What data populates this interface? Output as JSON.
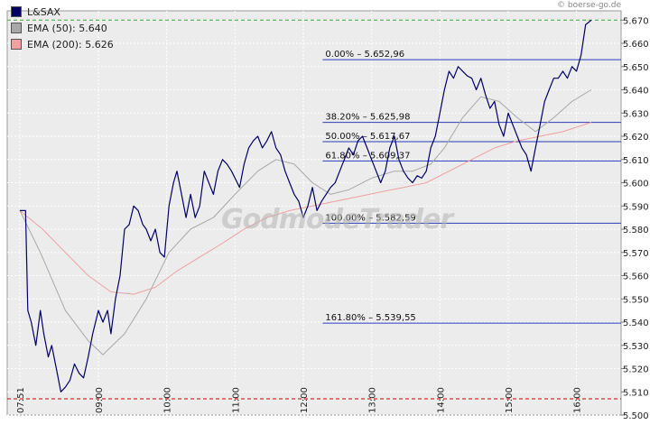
{
  "source": "© boerse-go.de",
  "watermark": "GodmodeTrader",
  "legend": [
    {
      "label": "L&SAX",
      "color": "#000066"
    },
    {
      "label": "EMA (50): 5.640",
      "color": "#a8a8a8"
    },
    {
      "label": "EMA (200): 5.626",
      "color": "#f0a0a0"
    }
  ],
  "chart_data": {
    "type": "line",
    "x_ticks": [
      "07:51",
      "09:00",
      "10:00",
      "11:00",
      "12:00",
      "13:00",
      "14:00",
      "15:00",
      "16:00"
    ],
    "y_ticks": [
      "5.500",
      "5.510",
      "5.520",
      "5.530",
      "5.540",
      "5.550",
      "5.560",
      "5.570",
      "5.580",
      "5.590",
      "5.600",
      "5.610",
      "5.620",
      "5.630",
      "5.640",
      "5.650",
      "5.660",
      "5.670"
    ],
    "ylim": [
      5.5,
      5.674
    ],
    "xlim": [
      "07:51",
      "16:13"
    ],
    "grid": true,
    "reference_lines": [
      {
        "type": "high",
        "value": 5.67,
        "color": "#33aa33",
        "style": "dashed"
      },
      {
        "type": "low",
        "value": 5.507,
        "color": "#cc0000",
        "style": "dashed"
      }
    ],
    "fibonacci": [
      {
        "label": "0.00% – 5.652,96",
        "value": 5.65296
      },
      {
        "label": "38.20% – 5.625,98",
        "value": 5.62598
      },
      {
        "label": "50.00% – 5.617,67",
        "value": 5.61767
      },
      {
        "label": "61.80% – 5.609,37",
        "value": 5.60937
      },
      {
        "label": "100.00% – 5.582,59",
        "value": 5.58259
      },
      {
        "label": "161.80% – 5.539,55",
        "value": 5.53955
      }
    ],
    "series": [
      {
        "name": "L&SAX",
        "color": "#000066",
        "points": [
          [
            "07:51",
            5.588
          ],
          [
            "07:56",
            5.588
          ],
          [
            "07:58",
            5.545
          ],
          [
            "08:01",
            5.54
          ],
          [
            "08:05",
            5.53
          ],
          [
            "08:09",
            5.545
          ],
          [
            "08:12",
            5.535
          ],
          [
            "08:16",
            5.525
          ],
          [
            "08:19",
            5.53
          ],
          [
            "08:23",
            5.52
          ],
          [
            "08:27",
            5.51
          ],
          [
            "08:31",
            5.512
          ],
          [
            "08:35",
            5.515
          ],
          [
            "08:39",
            5.522
          ],
          [
            "08:43",
            5.518
          ],
          [
            "08:47",
            5.516
          ],
          [
            "08:51",
            5.525
          ],
          [
            "08:55",
            5.535
          ],
          [
            "09:00",
            5.545
          ],
          [
            "09:04",
            5.54
          ],
          [
            "09:08",
            5.545
          ],
          [
            "09:11",
            5.535
          ],
          [
            "09:15",
            5.55
          ],
          [
            "09:19",
            5.56
          ],
          [
            "09:23",
            5.58
          ],
          [
            "09:27",
            5.582
          ],
          [
            "09:31",
            5.59
          ],
          [
            "09:35",
            5.588
          ],
          [
            "09:39",
            5.582
          ],
          [
            "09:42",
            5.58
          ],
          [
            "09:46",
            5.575
          ],
          [
            "09:50",
            5.58
          ],
          [
            "09:54",
            5.57
          ],
          [
            "09:58",
            5.568
          ],
          [
            "10:02",
            5.59
          ],
          [
            "10:06",
            5.6
          ],
          [
            "10:09",
            5.605
          ],
          [
            "10:13",
            5.595
          ],
          [
            "10:17",
            5.585
          ],
          [
            "10:21",
            5.595
          ],
          [
            "10:25",
            5.585
          ],
          [
            "10:29",
            5.59
          ],
          [
            "10:33",
            5.605
          ],
          [
            "10:37",
            5.6
          ],
          [
            "10:41",
            5.595
          ],
          [
            "10:45",
            5.605
          ],
          [
            "10:49",
            5.61
          ],
          [
            "10:53",
            5.608
          ],
          [
            "10:57",
            5.605
          ],
          [
            "11:00",
            5.602
          ],
          [
            "11:04",
            5.598
          ],
          [
            "11:08",
            5.608
          ],
          [
            "11:12",
            5.615
          ],
          [
            "11:16",
            5.618
          ],
          [
            "11:20",
            5.62
          ],
          [
            "11:24",
            5.615
          ],
          [
            "11:28",
            5.618
          ],
          [
            "11:32",
            5.622
          ],
          [
            "11:36",
            5.615
          ],
          [
            "11:40",
            5.612
          ],
          [
            "11:44",
            5.605
          ],
          [
            "11:48",
            5.6
          ],
          [
            "11:52",
            5.595
          ],
          [
            "11:56",
            5.592
          ],
          [
            "12:00",
            5.585
          ],
          [
            "12:04",
            5.59
          ],
          [
            "12:08",
            5.598
          ],
          [
            "12:12",
            5.588
          ],
          [
            "12:16",
            5.592
          ],
          [
            "12:20",
            5.595
          ],
          [
            "12:24",
            5.598
          ],
          [
            "12:28",
            5.6
          ],
          [
            "12:32",
            5.605
          ],
          [
            "12:36",
            5.61
          ],
          [
            "12:40",
            5.615
          ],
          [
            "12:44",
            5.612
          ],
          [
            "12:48",
            5.618
          ],
          [
            "12:52",
            5.62
          ],
          [
            "12:56",
            5.615
          ],
          [
            "13:00",
            5.61
          ],
          [
            "13:04",
            5.605
          ],
          [
            "13:08",
            5.6
          ],
          [
            "13:12",
            5.605
          ],
          [
            "13:16",
            5.615
          ],
          [
            "13:20",
            5.62
          ],
          [
            "13:24",
            5.61
          ],
          [
            "13:28",
            5.605
          ],
          [
            "13:32",
            5.602
          ],
          [
            "13:36",
            5.6
          ],
          [
            "13:40",
            5.603
          ],
          [
            "13:44",
            5.602
          ],
          [
            "13:48",
            5.605
          ],
          [
            "13:52",
            5.615
          ],
          [
            "13:56",
            5.62
          ],
          [
            "14:00",
            5.63
          ],
          [
            "14:04",
            5.64
          ],
          [
            "14:08",
            5.648
          ],
          [
            "14:12",
            5.645
          ],
          [
            "14:16",
            5.65
          ],
          [
            "14:20",
            5.648
          ],
          [
            "14:24",
            5.646
          ],
          [
            "14:28",
            5.645
          ],
          [
            "14:32",
            5.64
          ],
          [
            "14:36",
            5.645
          ],
          [
            "14:40",
            5.638
          ],
          [
            "14:44",
            5.632
          ],
          [
            "14:48",
            5.635
          ],
          [
            "14:52",
            5.625
          ],
          [
            "14:56",
            5.62
          ],
          [
            "15:00",
            5.63
          ],
          [
            "15:04",
            5.625
          ],
          [
            "15:08",
            5.62
          ],
          [
            "15:12",
            5.615
          ],
          [
            "15:16",
            5.612
          ],
          [
            "15:20",
            5.605
          ],
          [
            "15:24",
            5.615
          ],
          [
            "15:28",
            5.625
          ],
          [
            "15:32",
            5.635
          ],
          [
            "15:36",
            5.64
          ],
          [
            "15:40",
            5.645
          ],
          [
            "15:44",
            5.645
          ],
          [
            "15:48",
            5.648
          ],
          [
            "15:52",
            5.645
          ],
          [
            "15:56",
            5.65
          ],
          [
            "16:00",
            5.648
          ],
          [
            "16:04",
            5.655
          ],
          [
            "16:08",
            5.668
          ],
          [
            "16:13",
            5.67
          ]
        ]
      },
      {
        "name": "EMA (50): 5.640",
        "color": "#a8a8a8",
        "points": [
          [
            "07:51",
            5.588
          ],
          [
            "08:09",
            5.57
          ],
          [
            "08:31",
            5.545
          ],
          [
            "08:51",
            5.532
          ],
          [
            "09:04",
            5.526
          ],
          [
            "09:23",
            5.535
          ],
          [
            "09:42",
            5.55
          ],
          [
            "10:02",
            5.57
          ],
          [
            "10:21",
            5.58
          ],
          [
            "10:41",
            5.585
          ],
          [
            "11:00",
            5.595
          ],
          [
            "11:20",
            5.605
          ],
          [
            "11:36",
            5.61
          ],
          [
            "11:52",
            5.608
          ],
          [
            "12:08",
            5.6
          ],
          [
            "12:24",
            5.595
          ],
          [
            "12:40",
            5.597
          ],
          [
            "13:00",
            5.602
          ],
          [
            "13:20",
            5.605
          ],
          [
            "13:36",
            5.605
          ],
          [
            "13:52",
            5.608
          ],
          [
            "14:04",
            5.615
          ],
          [
            "14:20",
            5.628
          ],
          [
            "14:36",
            5.637
          ],
          [
            "14:52",
            5.635
          ],
          [
            "15:08",
            5.628
          ],
          [
            "15:24",
            5.622
          ],
          [
            "15:40",
            5.628
          ],
          [
            "15:56",
            5.635
          ],
          [
            "16:13",
            5.64
          ]
        ]
      },
      {
        "name": "EMA (200): 5.626",
        "color": "#f0a0a0",
        "points": [
          [
            "07:51",
            5.588
          ],
          [
            "08:11",
            5.58
          ],
          [
            "08:31",
            5.57
          ],
          [
            "08:51",
            5.56
          ],
          [
            "09:11",
            5.553
          ],
          [
            "09:31",
            5.552
          ],
          [
            "09:50",
            5.555
          ],
          [
            "10:09",
            5.562
          ],
          [
            "10:29",
            5.568
          ],
          [
            "10:49",
            5.574
          ],
          [
            "11:08",
            5.58
          ],
          [
            "11:28",
            5.585
          ],
          [
            "11:48",
            5.588
          ],
          [
            "12:08",
            5.59
          ],
          [
            "12:28",
            5.592
          ],
          [
            "12:48",
            5.594
          ],
          [
            "13:08",
            5.596
          ],
          [
            "13:28",
            5.598
          ],
          [
            "13:48",
            5.6
          ],
          [
            "14:08",
            5.605
          ],
          [
            "14:28",
            5.61
          ],
          [
            "14:48",
            5.615
          ],
          [
            "15:08",
            5.618
          ],
          [
            "15:28",
            5.62
          ],
          [
            "15:48",
            5.622
          ],
          [
            "16:13",
            5.626
          ]
        ]
      }
    ]
  }
}
